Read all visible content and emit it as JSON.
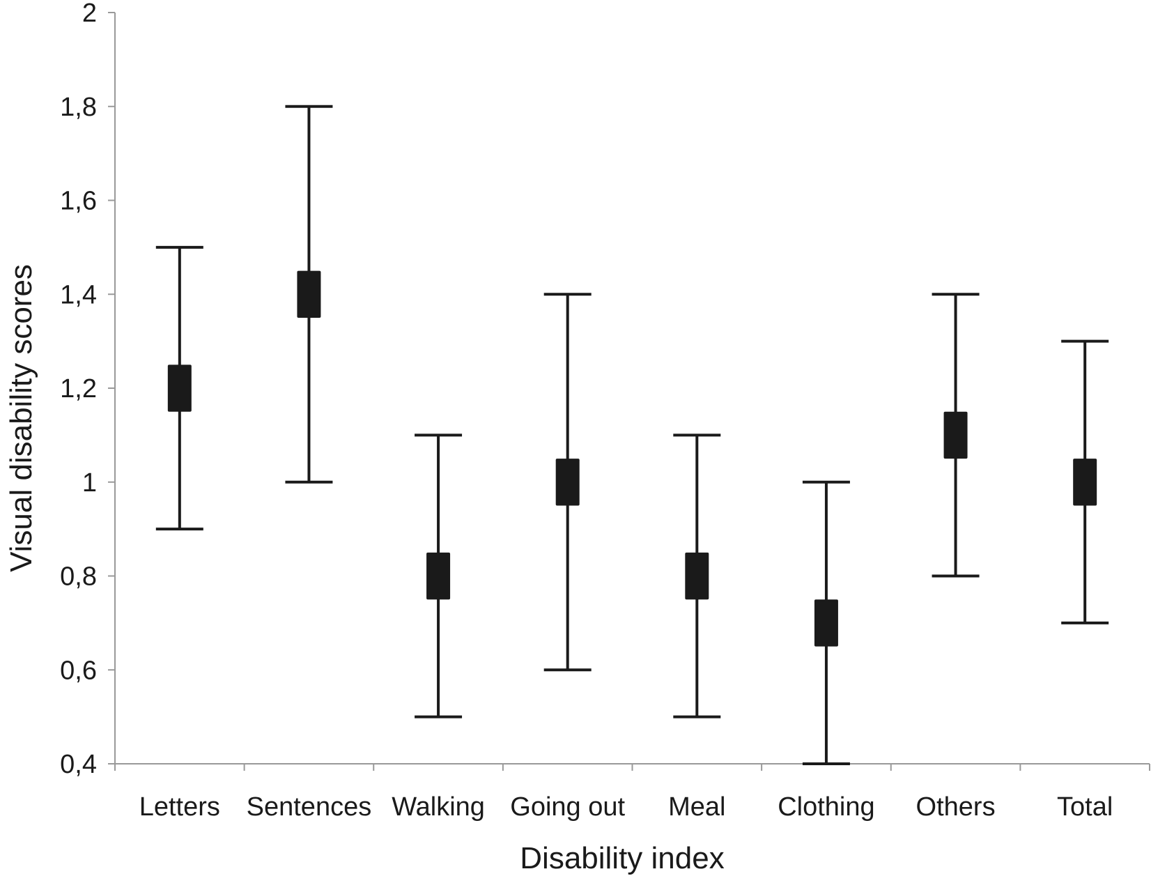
{
  "chart_data": {
    "type": "error-bar",
    "xlabel": "Disability index",
    "ylabel": "Visual disability scores",
    "ylim": [
      0.4,
      2
    ],
    "yticks": [
      0.4,
      0.6,
      0.8,
      1,
      1.2,
      1.4,
      1.6,
      1.8,
      2
    ],
    "ytick_labels": [
      "0,4",
      "0,6",
      "0,8",
      "1",
      "1,2",
      "1,4",
      "1,6",
      "1,8",
      "2"
    ],
    "categories": [
      "Letters",
      "Sentences",
      "Walking",
      "Going out",
      "Meal",
      "Clothing",
      "Others",
      "Total"
    ],
    "mean": [
      1.2,
      1.4,
      0.8,
      1.0,
      0.8,
      0.7,
      1.1,
      1.0
    ],
    "lower": [
      0.9,
      1.0,
      0.5,
      0.6,
      0.5,
      0.4,
      0.8,
      0.7
    ],
    "upper": [
      1.5,
      1.8,
      1.1,
      1.4,
      1.1,
      1.0,
      1.4,
      1.3
    ],
    "grid": false,
    "colors": {
      "marks": "#1a1a1a",
      "axis": "#999999",
      "text": "#1a1a1a"
    }
  }
}
